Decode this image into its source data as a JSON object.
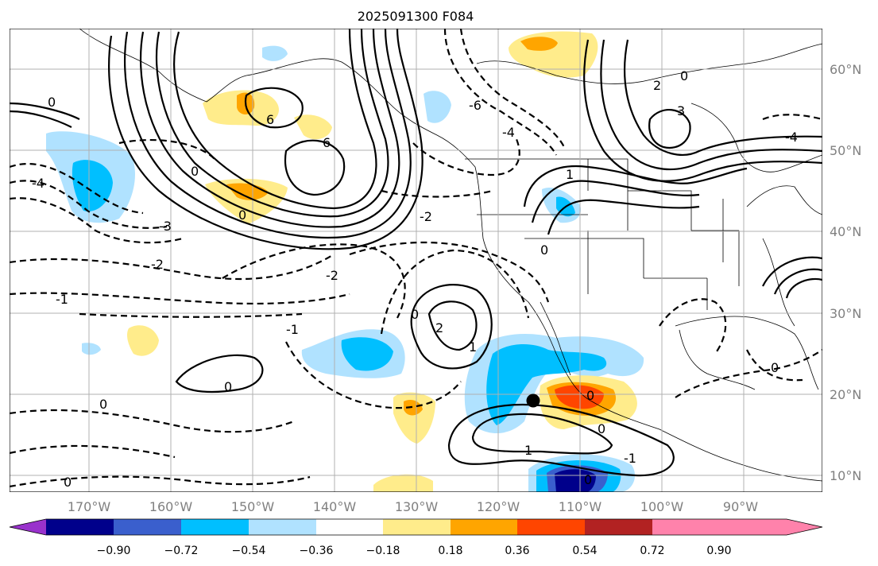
{
  "title": "2025091300 F084",
  "lon_labels": [
    "170°W",
    "160°W",
    "150°W",
    "140°W",
    "130°W",
    "120°W",
    "110°W",
    "100°W",
    "90°W"
  ],
  "lat_labels": [
    "60°N",
    "50°N",
    "40°N",
    "30°N",
    "20°N",
    "10°N"
  ],
  "colorbar": {
    "tick_labels": [
      "−0.90",
      "−0.72",
      "−0.54",
      "−0.36",
      "−0.18",
      "0.18",
      "0.36",
      "0.54",
      "0.72",
      "0.90"
    ],
    "colors": [
      "#9932cc",
      "#00008b",
      "#3a5fcd",
      "#00bfff",
      "#b0e2ff",
      "#ffffff",
      "#ffec8b",
      "#ffa500",
      "#ff4500",
      "#b22222",
      "#ff82ab"
    ]
  },
  "contour_labels": [
    "0",
    "1",
    "2",
    "3",
    "6",
    "-1",
    "-2",
    "-3",
    "-4",
    "-6"
  ],
  "marker": "storm-center-dot"
}
